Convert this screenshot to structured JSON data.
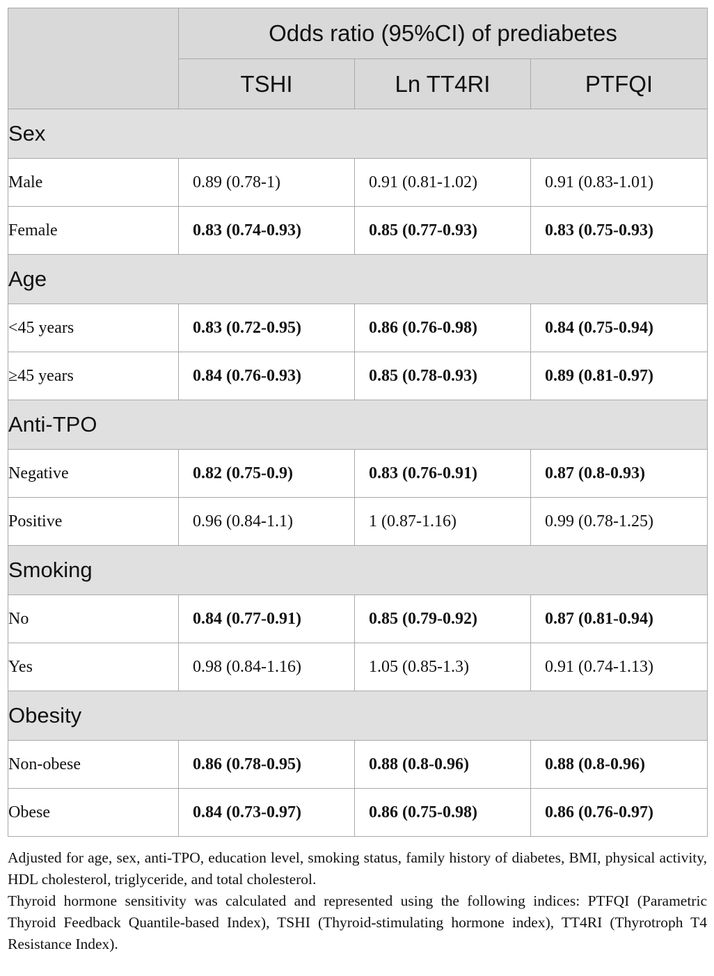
{
  "table": {
    "header": {
      "spanning_title": "Odds ratio (95%CI) of prediabetes",
      "columns": [
        "TSHI",
        "Ln TT4RI",
        "PTFQI"
      ]
    },
    "groups": [
      {
        "label": "Sex",
        "rows": [
          {
            "label": "Male",
            "values": [
              "0.89 (0.78-1)",
              "0.91 (0.81-1.02)",
              "0.91 (0.83-1.01)"
            ],
            "bold": [
              false,
              false,
              false
            ]
          },
          {
            "label": "Female",
            "values": [
              "0.83 (0.74-0.93)",
              "0.85 (0.77-0.93)",
              "0.83 (0.75-0.93)"
            ],
            "bold": [
              true,
              true,
              true
            ]
          }
        ]
      },
      {
        "label": "Age",
        "rows": [
          {
            "label": "<45 years",
            "values": [
              "0.83 (0.72-0.95)",
              "0.86 (0.76-0.98)",
              "0.84 (0.75-0.94)"
            ],
            "bold": [
              true,
              true,
              true
            ]
          },
          {
            "label": "≥45 years",
            "values": [
              "0.84 (0.76-0.93)",
              "0.85 (0.78-0.93)",
              "0.89 (0.81-0.97)"
            ],
            "bold": [
              true,
              true,
              true
            ]
          }
        ]
      },
      {
        "label": "Anti-TPO",
        "rows": [
          {
            "label": "Negative",
            "values": [
              "0.82 (0.75-0.9)",
              "0.83 (0.76-0.91)",
              "0.87 (0.8-0.93)"
            ],
            "bold": [
              true,
              true,
              true
            ]
          },
          {
            "label": "Positive",
            "values": [
              "0.96 (0.84-1.1)",
              "1 (0.87-1.16)",
              "0.99 (0.78-1.25)"
            ],
            "bold": [
              false,
              false,
              false
            ]
          }
        ]
      },
      {
        "label": "Smoking",
        "rows": [
          {
            "label": "No",
            "values": [
              "0.84 (0.77-0.91)",
              "0.85 (0.79-0.92)",
              "0.87 (0.81-0.94)"
            ],
            "bold": [
              true,
              true,
              true
            ]
          },
          {
            "label": "Yes",
            "values": [
              "0.98 (0.84-1.16)",
              "1.05 (0.85-1.3)",
              "0.91 (0.74-1.13)"
            ],
            "bold": [
              false,
              false,
              false
            ]
          }
        ]
      },
      {
        "label": "Obesity",
        "rows": [
          {
            "label": "Non-obese",
            "values": [
              "0.86 (0.78-0.95)",
              "0.88 (0.8-0.96)",
              "0.88 (0.8-0.96)"
            ],
            "bold": [
              true,
              true,
              true
            ]
          },
          {
            "label": "Obese",
            "values": [
              "0.84 (0.73-0.97)",
              "0.86 (0.75-0.98)",
              "0.86 (0.76-0.97)"
            ],
            "bold": [
              true,
              true,
              true
            ]
          }
        ]
      }
    ]
  },
  "footnotes": [
    "Adjusted for age, sex, anti-TPO, education level, smoking status, family history of diabetes, BMI, physical activity, HDL cholesterol, triglyceride, and total cholesterol.",
    "Thyroid hormone sensitivity was calculated and represented using the following indices: PTFQI (Parametric Thyroid Feedback Quantile-based Index), TSHI (Thyroid-stimulating hormone index), TT4RI (Thyrotroph T4 Resistance Index)."
  ]
}
